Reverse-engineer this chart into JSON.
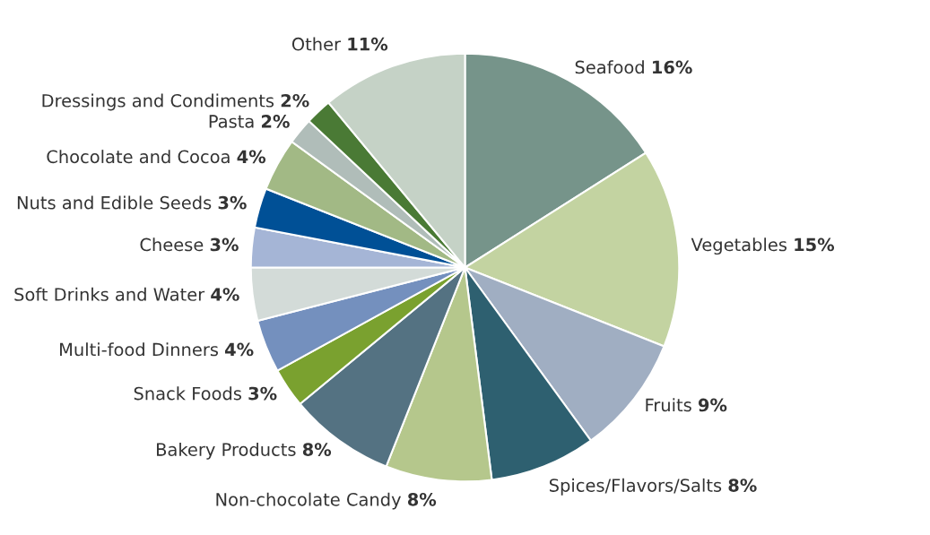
{
  "chart_data": {
    "type": "pie",
    "categories": [
      "Seafood",
      "Vegetables",
      "Fruits",
      "Spices/Flavors/Salts",
      "Non-chocolate Candy",
      "Bakery Products",
      "Snack Foods",
      "Multi-food Dinners",
      "Soft Drinks and Water",
      "Cheese",
      "Nuts and Edible Seeds",
      "Chocolate and Cocoa",
      "Pasta",
      "Dressings and Condiments",
      "Other"
    ],
    "values": [
      16,
      15,
      9,
      8,
      8,
      8,
      3,
      4,
      4,
      3,
      3,
      4,
      2,
      2,
      11
    ],
    "value_labels": [
      "16%",
      "15%",
      "9%",
      "8%",
      "8%",
      "8%",
      "3%",
      "4%",
      "4%",
      "3%",
      "3%",
      "4%",
      "2%",
      "2%",
      "11%"
    ],
    "colors": [
      "#76948a",
      "#c3d3a1",
      "#a0aec2",
      "#2e6070",
      "#b5c78c",
      "#547282",
      "#7aa12f",
      "#7490be",
      "#d3dbd8",
      "#a5b5d6",
      "#005096",
      "#a2b985",
      "#b0bdb9",
      "#4a7a35",
      "#c5d2c6"
    ],
    "legend": false
  }
}
